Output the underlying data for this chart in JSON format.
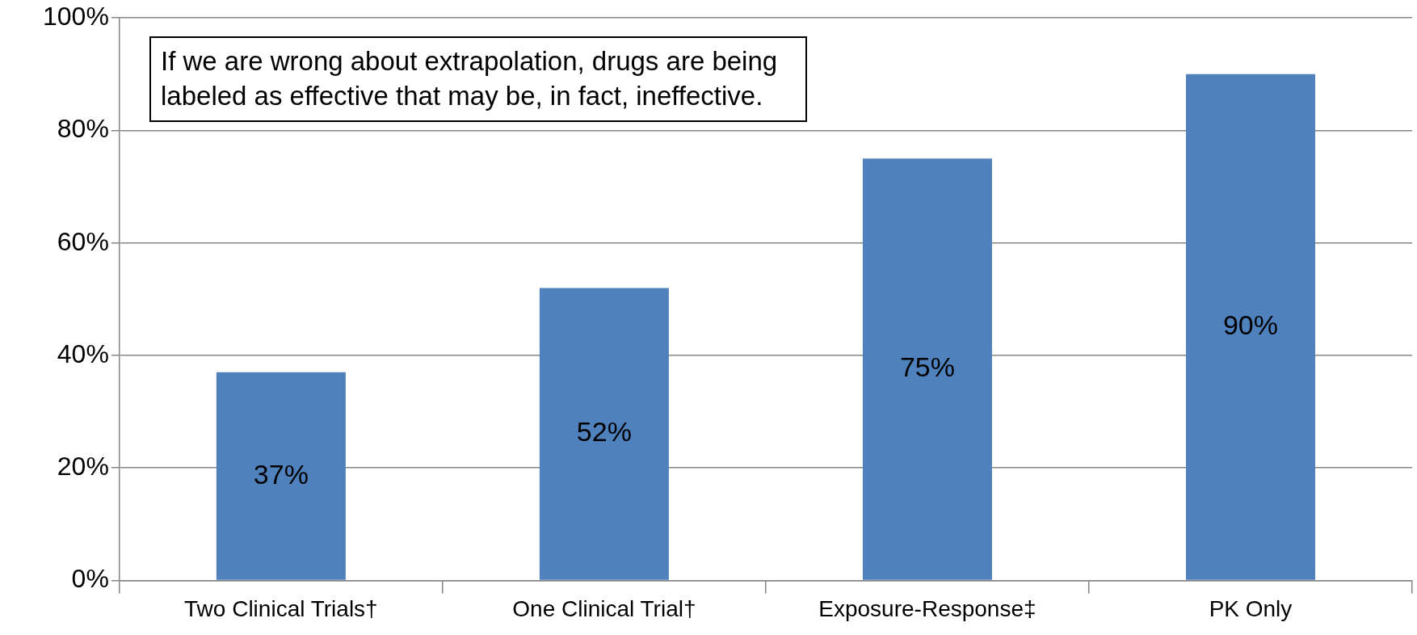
{
  "chart_data": {
    "type": "bar",
    "categories": [
      "Two Clinical Trials†",
      "One Clinical Trial†",
      "Exposure-Response‡",
      "PK Only"
    ],
    "values": [
      37,
      52,
      75,
      90
    ],
    "value_labels": [
      "37%",
      "52%",
      "75%",
      "90%"
    ],
    "color": "#4f81bd",
    "ylim": [
      0,
      100
    ],
    "yticks": [
      {
        "value": 0,
        "label": "0%"
      },
      {
        "value": 20,
        "label": "20%"
      },
      {
        "value": 40,
        "label": "40%"
      },
      {
        "value": 60,
        "label": "60%"
      },
      {
        "value": 80,
        "label": "80%"
      },
      {
        "value": 100,
        "label": "100%"
      }
    ],
    "grid": "y",
    "legend": false,
    "annotations": [
      "If we are wrong about extrapolation, drugs are being labeled as effective that may be, in fact, ineffective."
    ]
  }
}
